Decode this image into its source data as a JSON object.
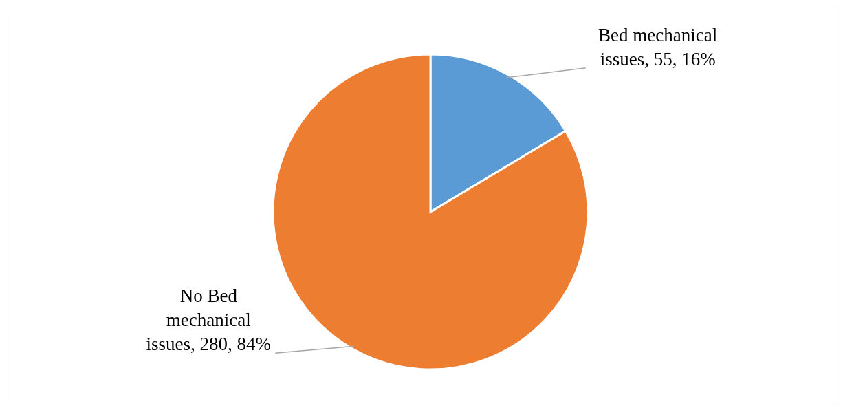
{
  "chart_data": {
    "type": "pie",
    "categories": [
      "Bed mechanical issues",
      "No Bed mechanical issues"
    ],
    "values": [
      55,
      280
    ],
    "colors": [
      "#5b9bd5",
      "#ed7d31"
    ],
    "value_labels": [
      "55, 16%",
      "280, 84%"
    ],
    "legend": false
  }
}
